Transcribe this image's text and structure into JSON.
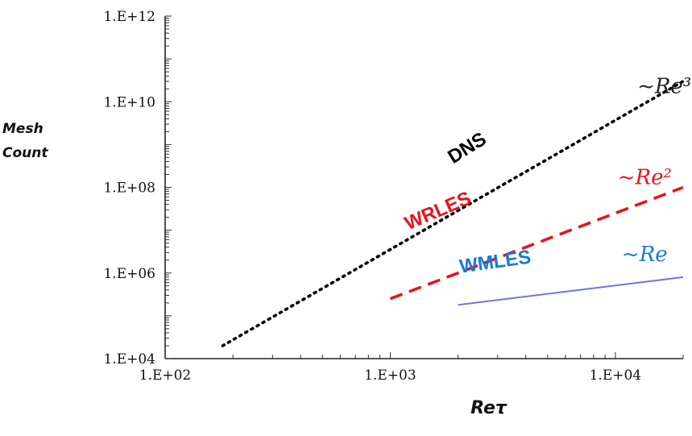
{
  "chart_data": {
    "type": "line",
    "xlabel": "Reτ",
    "ylabel": [
      "Mesh",
      "Count"
    ],
    "x_scale": "log",
    "y_scale": "log",
    "xlim": [
      100,
      20000
    ],
    "ylim": [
      10000,
      1000000000000
    ],
    "x_ticks": [
      {
        "value": 100,
        "label": "1.E+02"
      },
      {
        "value": 1000,
        "label": "1.E+03"
      },
      {
        "value": 10000,
        "label": "1.E+04"
      }
    ],
    "y_ticks": [
      {
        "value": 10000,
        "label": "1.E+04"
      },
      {
        "value": 1000000,
        "label": "1.E+06"
      },
      {
        "value": 100000000,
        "label": "1.E+08"
      },
      {
        "value": 10000000000,
        "label": "1.E+10"
      },
      {
        "value": 1000000000000,
        "label": "1.E+12"
      }
    ],
    "grid": false,
    "series": [
      {
        "name": "DNS",
        "scaling": "~Re³",
        "x": [
          180,
          20000
        ],
        "y": [
          20000,
          30000000000
        ],
        "color": "#000000",
        "style": "dotted",
        "label_color": "#000000",
        "scaling_color": "#222222"
      },
      {
        "name": "WRLES",
        "scaling": "~Re²",
        "x": [
          1000,
          20000
        ],
        "y": [
          250000,
          100000000
        ],
        "color": "#e8141c",
        "style": "dashed",
        "label_color": "#e8141c",
        "scaling_color": "#e8141c"
      },
      {
        "name": "WMLES",
        "scaling": "~Re",
        "x": [
          2000,
          20000
        ],
        "y": [
          180000,
          800000
        ],
        "color": "#6f72e6",
        "style": "solid",
        "label_color": "#1a7bd0",
        "scaling_color": "#1a7bd0"
      }
    ]
  }
}
